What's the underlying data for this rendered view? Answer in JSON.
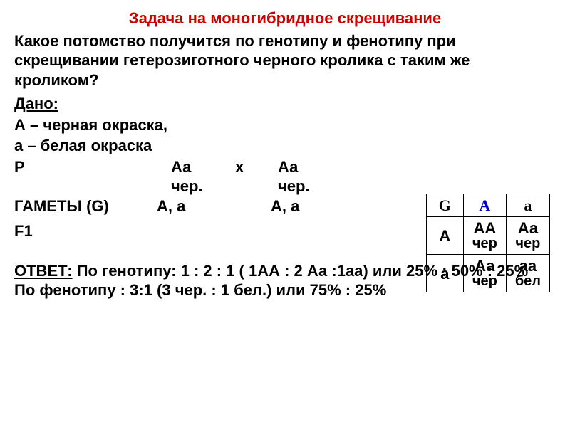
{
  "title": "Задача  на моногибридное скрещивание",
  "question": "Какое потомство получится  по генотипу и фенотипу  при скрещивании  гетерозиготного черного кролика с таким же кроликом?",
  "given": {
    "label": "Дано:",
    "lineA": "А – черная окраска,",
    "linea": "а – белая окраска"
  },
  "cross": {
    "P": "Р",
    "geno1": "Аа",
    "x": "х",
    "geno2": "Аа",
    "phen1": "чер.",
    "phen2": "чер.",
    "gametes_label": "ГАМЕТЫ (G)",
    "g1": "А, а",
    "g2": "А,  а",
    "f1": "F1"
  },
  "punnett": {
    "G": "G",
    "A": "A",
    "a": "a",
    "rowA": "А",
    "rowa": "а",
    "AA": "АА",
    "AA_phen": "чер",
    "Aa": "Аа",
    "Aa_phen": "чер",
    "aA": "Аа",
    "aA_phen": "чер",
    "aa": "аа",
    "aa_phen": "бел"
  },
  "answer": {
    "label": "ОТВЕТ:",
    "geno": " По генотипу:   1 : 2 : 1 ( 1АА : 2 Аа :1аа) или  25% : 50% : 25%",
    "pheno": "По фенотипу : 3:1      (3 чер. : 1 бел.)   или    75%  :  25%"
  },
  "colors": {
    "title": "#cc0000",
    "alleleA": "#0000cc",
    "text": "#000000",
    "background": "#ffffff"
  }
}
